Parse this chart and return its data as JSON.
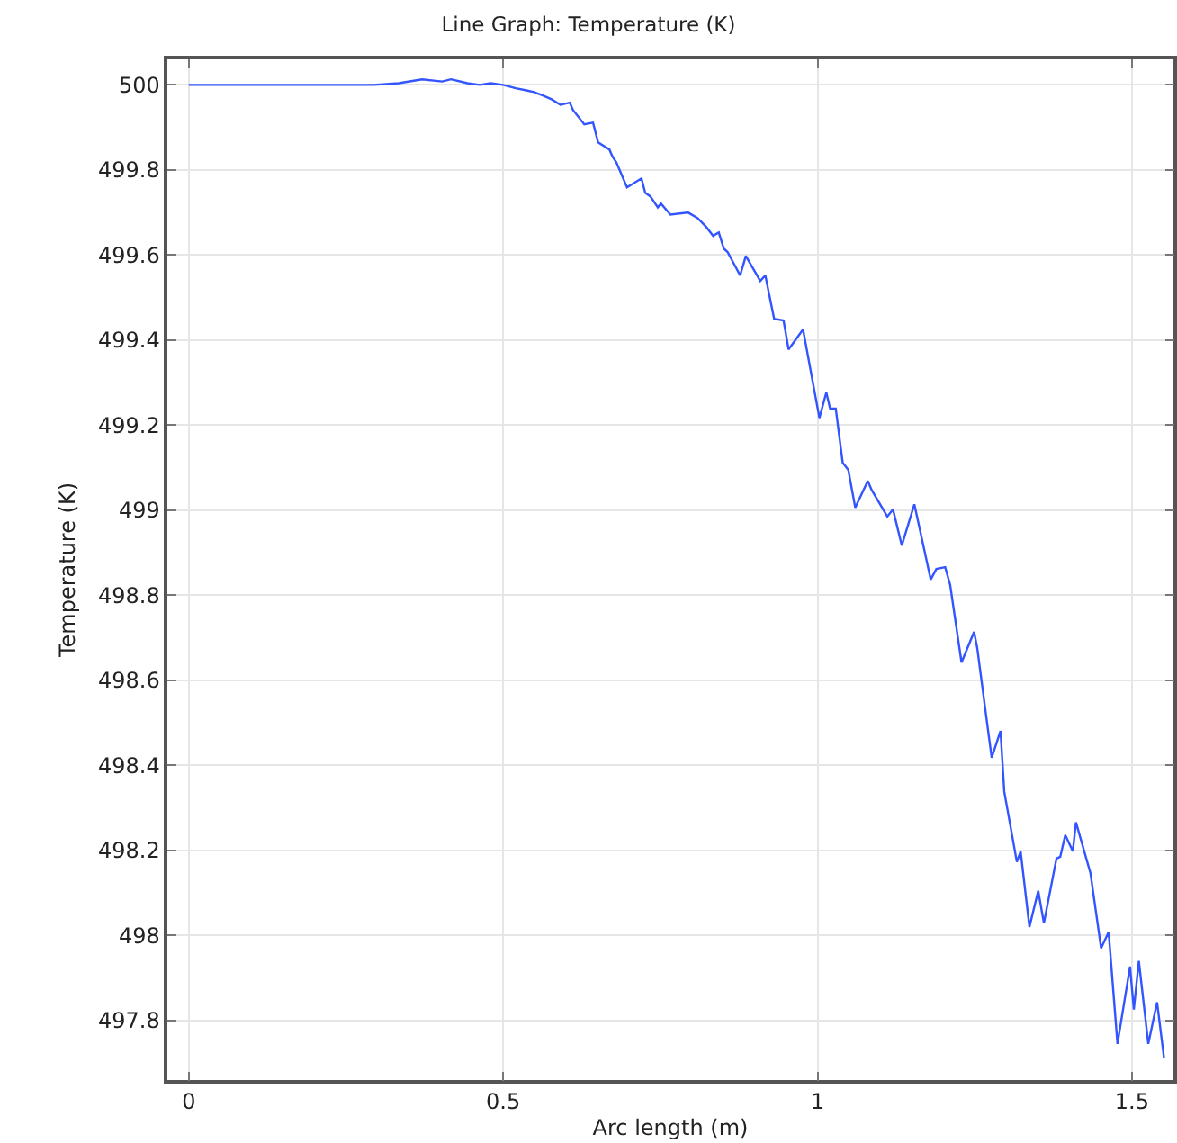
{
  "chart_data": {
    "type": "line",
    "title": "Line Graph: Temperature (K)",
    "xlabel": "Arc length (m)",
    "ylabel": "Temperature (K)",
    "xlim": [
      -0.034,
      1.566
    ],
    "xticks": [
      0,
      0.5,
      1,
      1.5
    ],
    "ylim": [
      497.66,
      500.06
    ],
    "yticks": [
      {
        "value": 497.8,
        "label": "497.8"
      },
      {
        "value": 498,
        "label": "498"
      },
      {
        "value": 498.2,
        "label": "498.2"
      },
      {
        "value": 498.4,
        "label": "498.4"
      },
      {
        "value": 498.6,
        "label": "498.6"
      },
      {
        "value": 498.8,
        "label": "498.8"
      },
      {
        "value": 499,
        "label": "499"
      },
      {
        "value": 499.2,
        "label": "499.2"
      },
      {
        "value": 499.4,
        "label": "499.4"
      },
      {
        "value": 499.6,
        "label": "499.6"
      },
      {
        "value": 499.8,
        "label": "499.8"
      },
      {
        "value": 500,
        "label": "500"
      }
    ],
    "grid": true,
    "marker": "none",
    "line_style": "solid",
    "x": [
      0,
      0.294,
      0.334,
      0.371,
      0.403,
      0.417,
      0.443,
      0.463,
      0.48,
      0.5,
      0.52,
      0.537,
      0.549,
      0.563,
      0.577,
      0.591,
      0.606,
      0.611,
      0.629,
      0.643,
      0.651,
      0.669,
      0.674,
      0.68,
      0.697,
      0.72,
      0.726,
      0.734,
      0.746,
      0.751,
      0.766,
      0.794,
      0.809,
      0.823,
      0.834,
      0.843,
      0.851,
      0.857,
      0.877,
      0.886,
      0.909,
      0.917,
      0.931,
      0.946,
      0.954,
      0.977,
      1.003,
      1.014,
      1.02,
      1.029,
      1.04,
      1.049,
      1.06,
      1.08,
      1.086,
      1.111,
      1.12,
      1.134,
      1.154,
      1.18,
      1.189,
      1.203,
      1.211,
      1.229,
      1.249,
      1.254,
      1.269,
      1.277,
      1.291,
      1.297,
      1.317,
      1.323,
      1.337,
      1.351,
      1.36,
      1.38,
      1.386,
      1.394,
      1.406,
      1.411,
      1.434,
      1.451,
      1.463,
      1.477,
      1.497,
      1.503,
      1.511,
      1.526,
      1.54,
      1.551
    ],
    "series": [
      {
        "color": "#3355ff",
        "values": [
          500,
          500,
          500.004,
          500.013,
          500.008,
          500.013,
          500.004,
          500,
          500.004,
          500,
          499.992,
          499.987,
          499.983,
          499.975,
          499.966,
          499.953,
          499.958,
          499.941,
          499.907,
          499.911,
          499.865,
          499.848,
          499.831,
          499.818,
          499.759,
          499.78,
          499.746,
          499.738,
          499.712,
          499.721,
          499.695,
          499.7,
          499.687,
          499.666,
          499.645,
          499.653,
          499.615,
          499.607,
          499.552,
          499.598,
          499.539,
          499.552,
          499.45,
          499.446,
          499.378,
          499.425,
          499.217,
          499.277,
          499.239,
          499.239,
          499.112,
          499.095,
          499.006,
          499.069,
          499.048,
          498.985,
          499.002,
          498.917,
          499.014,
          498.837,
          498.862,
          498.866,
          498.824,
          498.642,
          498.714,
          498.676,
          498.507,
          498.418,
          498.481,
          498.338,
          498.173,
          498.198,
          498.02,
          498.105,
          498.029,
          498.181,
          498.185,
          498.236,
          498.198,
          498.266,
          498.147,
          497.97,
          498.008,
          497.745,
          497.927,
          497.826,
          497.94,
          497.745,
          497.843,
          497.712
        ]
      }
    ]
  }
}
